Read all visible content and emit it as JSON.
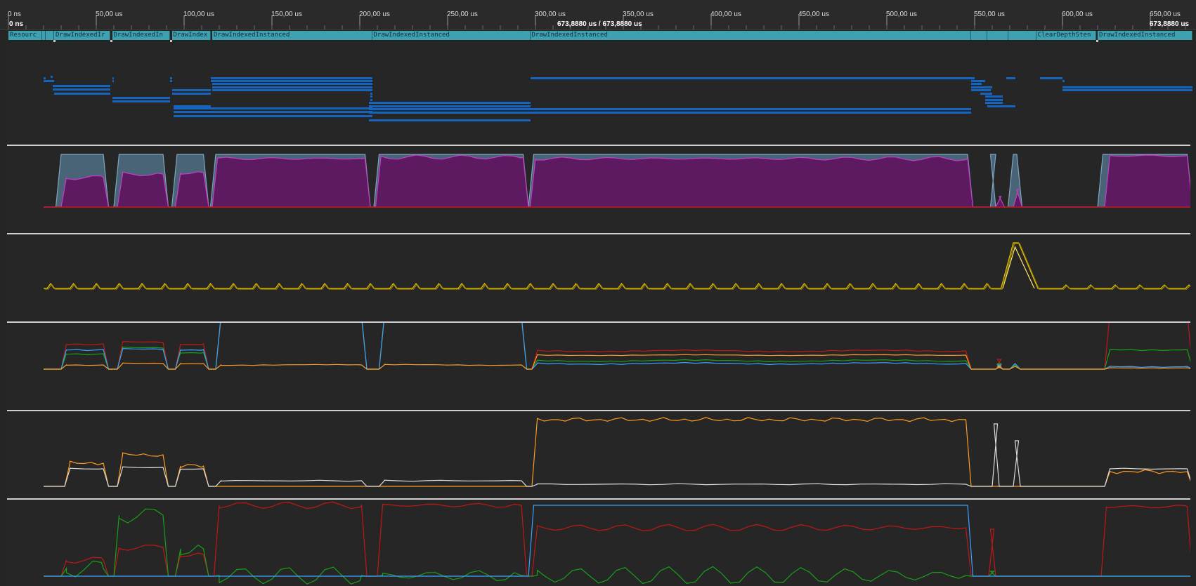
{
  "ruler": {
    "ticks": [
      {
        "label": "0 ns",
        "us": 0
      },
      {
        "label": "50,00 us",
        "us": 50
      },
      {
        "label": "100,00 us",
        "us": 100
      },
      {
        "label": "150,00 us",
        "us": 150
      },
      {
        "label": "200,00 us",
        "us": 200
      },
      {
        "label": "250,00 us",
        "us": 250
      },
      {
        "label": "300,00 us",
        "us": 300
      },
      {
        "label": "350,00 us",
        "us": 350
      },
      {
        "label": "400,00 us",
        "us": 400
      },
      {
        "label": "450,00 us",
        "us": 450
      },
      {
        "label": "500,00 us",
        "us": 500
      },
      {
        "label": "550,00 us",
        "us": 550
      },
      {
        "label": "600,00 us",
        "us": 600
      },
      {
        "label": "650,00 us",
        "us": 650
      }
    ],
    "range_start": "0 ns",
    "range_center": "673,8880 us / 673,8880 us",
    "range_end": "673,8880 us"
  },
  "events": [
    {
      "label": "Resourc",
      "start": 0,
      "end": 19
    },
    {
      "label": "",
      "start": 19,
      "end": 21
    },
    {
      "label": "",
      "start": 21,
      "end": 26
    },
    {
      "label": "DrawIndexedIr",
      "start": 26,
      "end": 58
    },
    {
      "label": "DrawIndexedIn",
      "start": 59,
      "end": 92
    },
    {
      "label": "DrawIndex",
      "start": 93,
      "end": 115
    },
    {
      "label": "DrawIndexedInstanced",
      "start": 116,
      "end": 207
    },
    {
      "label": "DrawIndexedInstanced",
      "start": 207,
      "end": 297
    },
    {
      "label": "DrawIndexedInstanced",
      "start": 297,
      "end": 548
    },
    {
      "label": "",
      "start": 548,
      "end": 557
    },
    {
      "label": "",
      "start": 557,
      "end": 569
    },
    {
      "label": "",
      "start": 569,
      "end": 585
    },
    {
      "label": "ClearDepthSten",
      "start": 585,
      "end": 619
    },
    {
      "label": "DrawIndexedInstanced",
      "start": 620,
      "end": 674
    }
  ],
  "markers_us": [
    26,
    58.5,
    92.5,
    619.5
  ],
  "colors": {
    "event": "#3fa0b0",
    "bars": "#1565c0",
    "area_back": "#4e6b80",
    "area_front": "#5e1a60",
    "yellow": "#e8c400",
    "red": "#c01818",
    "green": "#18a018",
    "blue": "#3aa0ff",
    "orange": "#ff9a1f",
    "white": "#dcdcdc"
  }
}
